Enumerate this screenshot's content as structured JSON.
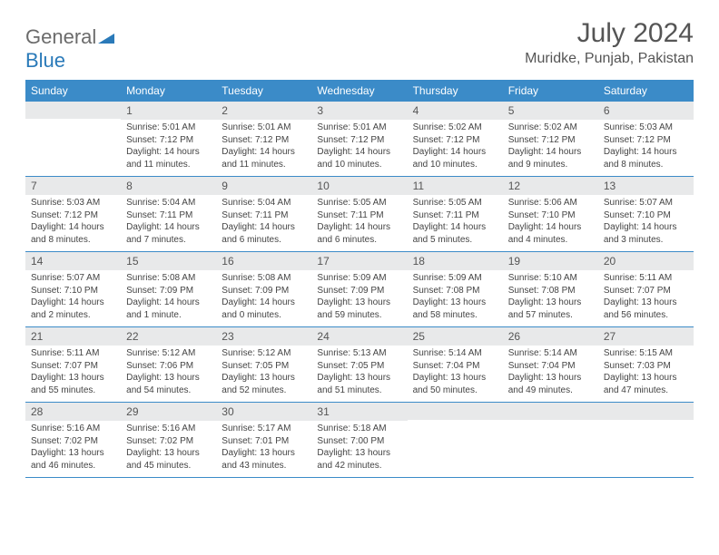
{
  "logo": {
    "text1": "General",
    "text2": "Blue"
  },
  "title": "July 2024",
  "location": "Muridke, Punjab, Pakistan",
  "colors": {
    "header_bg": "#3b8bc8",
    "header_text": "#ffffff",
    "daynum_bg": "#e8e9ea",
    "border": "#3b8bc8",
    "logo_gray": "#6b6b6b",
    "logo_blue": "#2a7ab9"
  },
  "day_headers": [
    "Sunday",
    "Monday",
    "Tuesday",
    "Wednesday",
    "Thursday",
    "Friday",
    "Saturday"
  ],
  "weeks": [
    [
      {
        "n": "",
        "sr": "",
        "ss": "",
        "dl": ""
      },
      {
        "n": "1",
        "sr": "Sunrise: 5:01 AM",
        "ss": "Sunset: 7:12 PM",
        "dl": "Daylight: 14 hours and 11 minutes."
      },
      {
        "n": "2",
        "sr": "Sunrise: 5:01 AM",
        "ss": "Sunset: 7:12 PM",
        "dl": "Daylight: 14 hours and 11 minutes."
      },
      {
        "n": "3",
        "sr": "Sunrise: 5:01 AM",
        "ss": "Sunset: 7:12 PM",
        "dl": "Daylight: 14 hours and 10 minutes."
      },
      {
        "n": "4",
        "sr": "Sunrise: 5:02 AM",
        "ss": "Sunset: 7:12 PM",
        "dl": "Daylight: 14 hours and 10 minutes."
      },
      {
        "n": "5",
        "sr": "Sunrise: 5:02 AM",
        "ss": "Sunset: 7:12 PM",
        "dl": "Daylight: 14 hours and 9 minutes."
      },
      {
        "n": "6",
        "sr": "Sunrise: 5:03 AM",
        "ss": "Sunset: 7:12 PM",
        "dl": "Daylight: 14 hours and 8 minutes."
      }
    ],
    [
      {
        "n": "7",
        "sr": "Sunrise: 5:03 AM",
        "ss": "Sunset: 7:12 PM",
        "dl": "Daylight: 14 hours and 8 minutes."
      },
      {
        "n": "8",
        "sr": "Sunrise: 5:04 AM",
        "ss": "Sunset: 7:11 PM",
        "dl": "Daylight: 14 hours and 7 minutes."
      },
      {
        "n": "9",
        "sr": "Sunrise: 5:04 AM",
        "ss": "Sunset: 7:11 PM",
        "dl": "Daylight: 14 hours and 6 minutes."
      },
      {
        "n": "10",
        "sr": "Sunrise: 5:05 AM",
        "ss": "Sunset: 7:11 PM",
        "dl": "Daylight: 14 hours and 6 minutes."
      },
      {
        "n": "11",
        "sr": "Sunrise: 5:05 AM",
        "ss": "Sunset: 7:11 PM",
        "dl": "Daylight: 14 hours and 5 minutes."
      },
      {
        "n": "12",
        "sr": "Sunrise: 5:06 AM",
        "ss": "Sunset: 7:10 PM",
        "dl": "Daylight: 14 hours and 4 minutes."
      },
      {
        "n": "13",
        "sr": "Sunrise: 5:07 AM",
        "ss": "Sunset: 7:10 PM",
        "dl": "Daylight: 14 hours and 3 minutes."
      }
    ],
    [
      {
        "n": "14",
        "sr": "Sunrise: 5:07 AM",
        "ss": "Sunset: 7:10 PM",
        "dl": "Daylight: 14 hours and 2 minutes."
      },
      {
        "n": "15",
        "sr": "Sunrise: 5:08 AM",
        "ss": "Sunset: 7:09 PM",
        "dl": "Daylight: 14 hours and 1 minute."
      },
      {
        "n": "16",
        "sr": "Sunrise: 5:08 AM",
        "ss": "Sunset: 7:09 PM",
        "dl": "Daylight: 14 hours and 0 minutes."
      },
      {
        "n": "17",
        "sr": "Sunrise: 5:09 AM",
        "ss": "Sunset: 7:09 PM",
        "dl": "Daylight: 13 hours and 59 minutes."
      },
      {
        "n": "18",
        "sr": "Sunrise: 5:09 AM",
        "ss": "Sunset: 7:08 PM",
        "dl": "Daylight: 13 hours and 58 minutes."
      },
      {
        "n": "19",
        "sr": "Sunrise: 5:10 AM",
        "ss": "Sunset: 7:08 PM",
        "dl": "Daylight: 13 hours and 57 minutes."
      },
      {
        "n": "20",
        "sr": "Sunrise: 5:11 AM",
        "ss": "Sunset: 7:07 PM",
        "dl": "Daylight: 13 hours and 56 minutes."
      }
    ],
    [
      {
        "n": "21",
        "sr": "Sunrise: 5:11 AM",
        "ss": "Sunset: 7:07 PM",
        "dl": "Daylight: 13 hours and 55 minutes."
      },
      {
        "n": "22",
        "sr": "Sunrise: 5:12 AM",
        "ss": "Sunset: 7:06 PM",
        "dl": "Daylight: 13 hours and 54 minutes."
      },
      {
        "n": "23",
        "sr": "Sunrise: 5:12 AM",
        "ss": "Sunset: 7:05 PM",
        "dl": "Daylight: 13 hours and 52 minutes."
      },
      {
        "n": "24",
        "sr": "Sunrise: 5:13 AM",
        "ss": "Sunset: 7:05 PM",
        "dl": "Daylight: 13 hours and 51 minutes."
      },
      {
        "n": "25",
        "sr": "Sunrise: 5:14 AM",
        "ss": "Sunset: 7:04 PM",
        "dl": "Daylight: 13 hours and 50 minutes."
      },
      {
        "n": "26",
        "sr": "Sunrise: 5:14 AM",
        "ss": "Sunset: 7:04 PM",
        "dl": "Daylight: 13 hours and 49 minutes."
      },
      {
        "n": "27",
        "sr": "Sunrise: 5:15 AM",
        "ss": "Sunset: 7:03 PM",
        "dl": "Daylight: 13 hours and 47 minutes."
      }
    ],
    [
      {
        "n": "28",
        "sr": "Sunrise: 5:16 AM",
        "ss": "Sunset: 7:02 PM",
        "dl": "Daylight: 13 hours and 46 minutes."
      },
      {
        "n": "29",
        "sr": "Sunrise: 5:16 AM",
        "ss": "Sunset: 7:02 PM",
        "dl": "Daylight: 13 hours and 45 minutes."
      },
      {
        "n": "30",
        "sr": "Sunrise: 5:17 AM",
        "ss": "Sunset: 7:01 PM",
        "dl": "Daylight: 13 hours and 43 minutes."
      },
      {
        "n": "31",
        "sr": "Sunrise: 5:18 AM",
        "ss": "Sunset: 7:00 PM",
        "dl": "Daylight: 13 hours and 42 minutes."
      },
      {
        "n": "",
        "sr": "",
        "ss": "",
        "dl": ""
      },
      {
        "n": "",
        "sr": "",
        "ss": "",
        "dl": ""
      },
      {
        "n": "",
        "sr": "",
        "ss": "",
        "dl": ""
      }
    ]
  ]
}
